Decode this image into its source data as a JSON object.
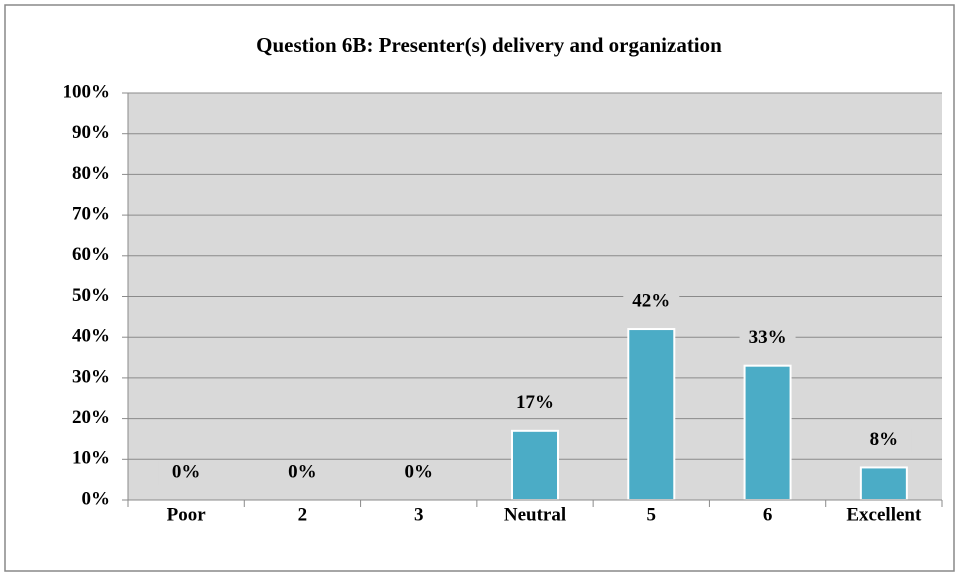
{
  "chart_data": {
    "type": "bar",
    "title": "Question 6B: Presenter(s) delivery and organization",
    "categories": [
      "Poor",
      "2",
      "3",
      "Neutral",
      "5",
      "6",
      "Excellent"
    ],
    "values": [
      0,
      0,
      0,
      17,
      42,
      33,
      8
    ],
    "value_labels": [
      "0%",
      "0%",
      "0%",
      "17%",
      "42%",
      "33%",
      "8%"
    ],
    "color": "#4bacc6",
    "ylim": [
      0,
      100
    ],
    "yticks": [
      {
        "value": 0,
        "label": "0%"
      },
      {
        "value": 10,
        "label": "10%"
      },
      {
        "value": 20,
        "label": "20%"
      },
      {
        "value": 30,
        "label": "30%"
      },
      {
        "value": 40,
        "label": "40%"
      },
      {
        "value": 50,
        "label": "50%"
      },
      {
        "value": 60,
        "label": "60%"
      },
      {
        "value": 70,
        "label": "70%"
      },
      {
        "value": 80,
        "label": "80%"
      },
      {
        "value": 90,
        "label": "90%"
      },
      {
        "value": 100,
        "label": "100%"
      }
    ],
    "grid": true
  }
}
